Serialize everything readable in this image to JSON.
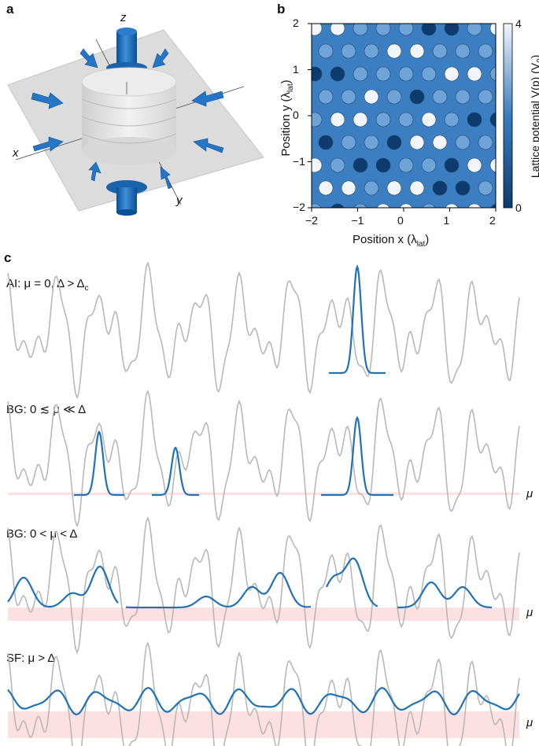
{
  "panels": {
    "a": {
      "letter": "a",
      "axis_labels": {
        "z": "z",
        "x": "x",
        "y": "y"
      }
    },
    "b": {
      "letter": "b",
      "x_axis_label": "Position x (λ",
      "x_axis_sub": "lat",
      "x_axis_close": ")",
      "y_axis_label": "Position y (λ",
      "y_axis_sub": "lat",
      "y_axis_close": ")",
      "colorbar_label": "Lattice potential V(p) (V",
      "colorbar_sub": "0",
      "colorbar_close": ")",
      "colorbar_ticks": [
        "4",
        "0"
      ],
      "x_ticks": [
        "−2",
        "−1",
        "0",
        "1",
        "2"
      ],
      "y_ticks": [
        "2",
        "1",
        "0",
        "−1",
        "−2"
      ],
      "colors": {
        "dark": "#0d3b6e",
        "mid": "#3a7cc0",
        "light": "#f2f6fb"
      }
    },
    "c": {
      "letter": "c",
      "rows": [
        {
          "label": "AI: μ = 0, Δ > Δ",
          "label_sub": "c",
          "mu_label": ""
        },
        {
          "label": "BG: 0 ≲ μ ≪ Δ",
          "label_sub": "",
          "mu_label": "μ"
        },
        {
          "label": "BG: 0 < μ < Δ",
          "label_sub": "",
          "mu_label": "μ"
        },
        {
          "label": "SF: μ > Δ",
          "label_sub": "",
          "mu_label": "μ"
        }
      ],
      "colors": {
        "potential": "#b8b8b8",
        "wavefunction": "#1f72b6",
        "fill": "#fde0e2",
        "fill_line": "#f5b9bf"
      }
    }
  }
}
